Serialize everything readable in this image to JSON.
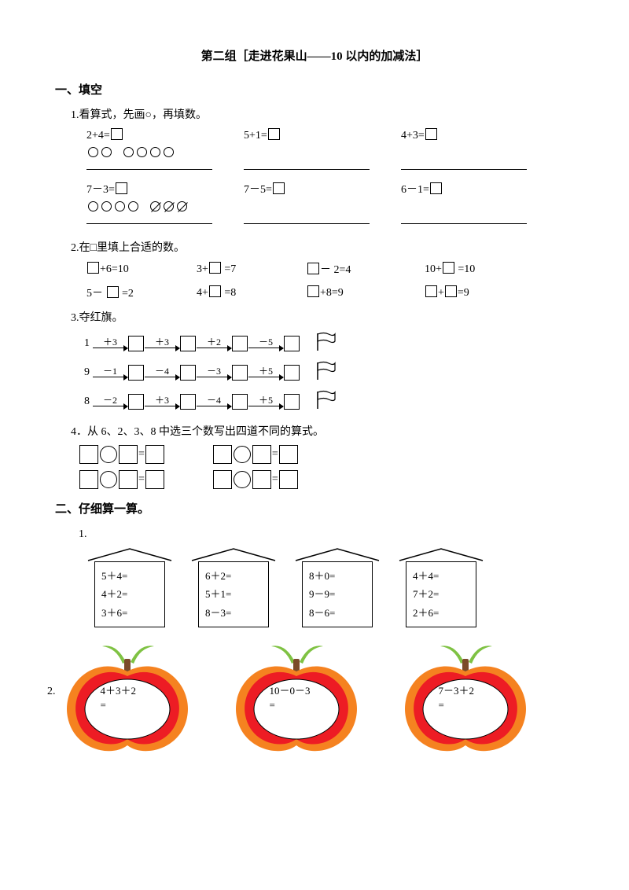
{
  "title": "第二组［走进花果山——10 以内的加减法］",
  "sec1": {
    "heading": "一、填空",
    "q1": {
      "label": "1.看算式，先画○，再填数。",
      "top": [
        "2+4=",
        "5+1=",
        "4+3="
      ],
      "bot": [
        "7－3=",
        "7－5=",
        "6－1="
      ]
    },
    "q2": {
      "label": "2.在□里填上合适的数。",
      "row1": [
        "+6=10",
        "3+",
        "=7",
        "－ 2=4",
        "10+",
        "=10"
      ],
      "row2": [
        "5－",
        "=2",
        "4+",
        "=8",
        "+8=9",
        "+",
        "=9"
      ]
    },
    "q3": {
      "label": "3.夺红旗。",
      "rows": [
        {
          "start": "1",
          "ops": [
            "＋3",
            "＋3",
            "＋2",
            "－5"
          ]
        },
        {
          "start": "9",
          "ops": [
            "－1",
            "－4",
            "－3",
            "＋5"
          ]
        },
        {
          "start": "8",
          "ops": [
            "－2",
            "＋3",
            "－4",
            "＋5"
          ]
        }
      ]
    },
    "q4": {
      "label": "4．从 6、2、3、8 中选三个数写出四道不同的算式。"
    }
  },
  "sec2": {
    "heading": "二、仔细算一算。",
    "p1_label": "1.",
    "houses": [
      [
        "5＋4=",
        "4＋2=",
        "3＋6="
      ],
      [
        "6＋2=",
        "5＋1=",
        "8－3="
      ],
      [
        "8＋0=",
        "9－9=",
        "8－6="
      ],
      [
        "4＋4=",
        "7＋2=",
        "2＋6="
      ]
    ],
    "p2_label": "2.",
    "apples": [
      "4＋3＋2\n=",
      "10－0－3\n=",
      "7－3＋2\n="
    ],
    "apple_colors": {
      "leaf": "#7fc243",
      "outer": "#f58220",
      "ring": "#ed1c24",
      "inner": "#ffffff",
      "stem": "#7b4b2a"
    }
  }
}
